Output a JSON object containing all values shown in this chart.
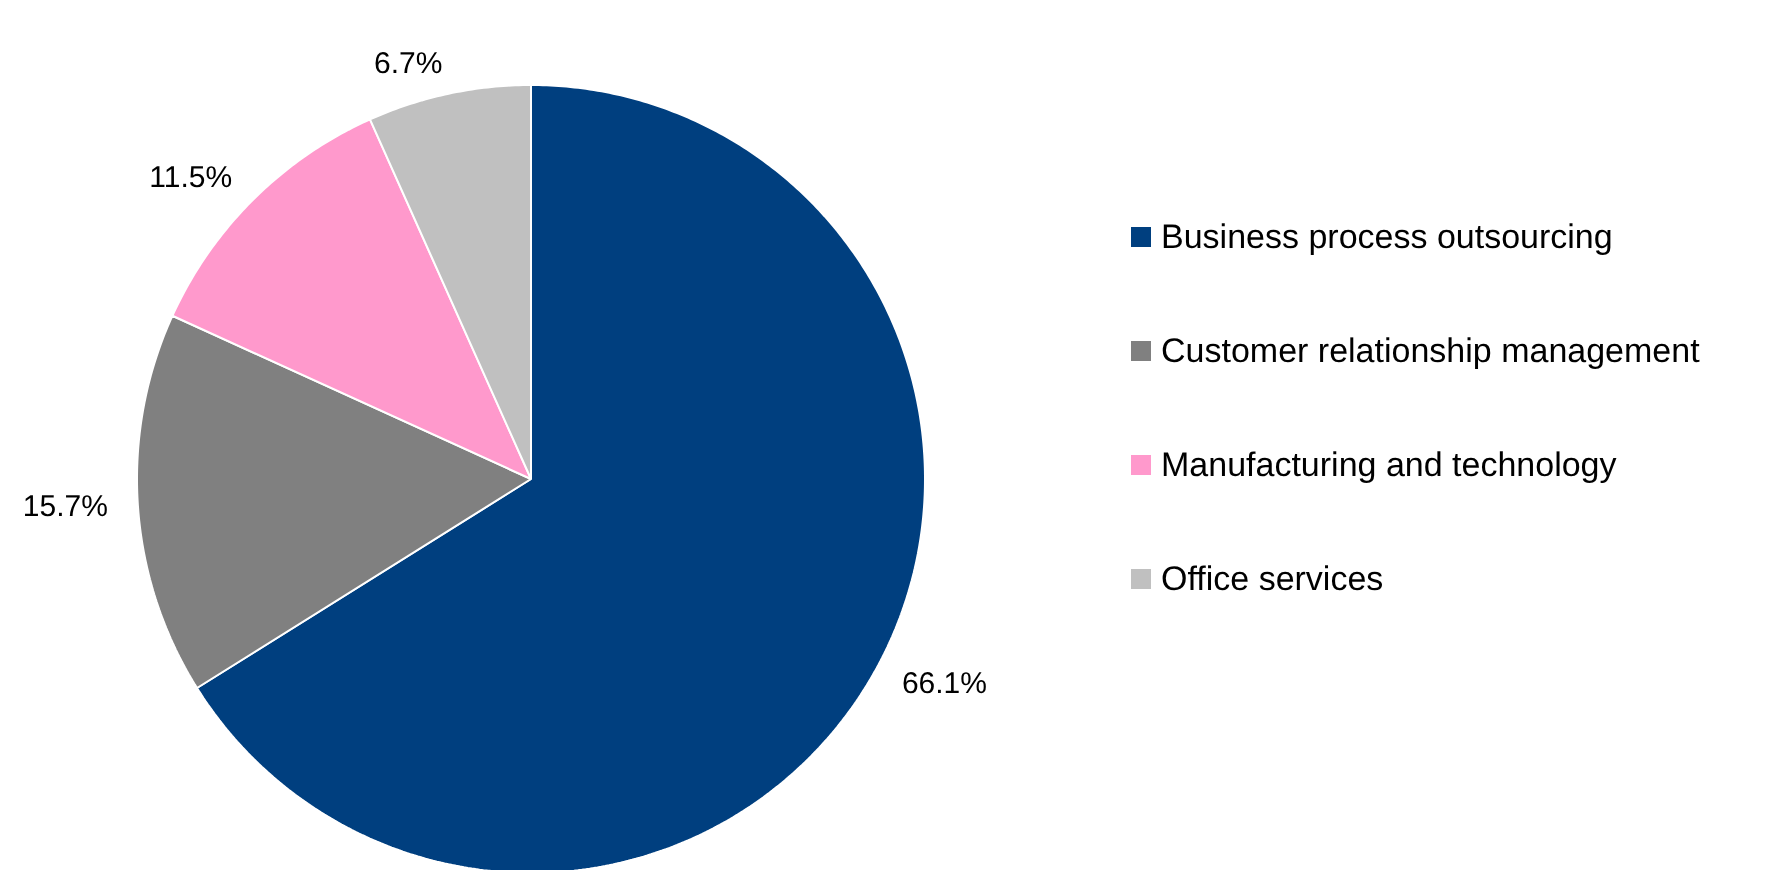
{
  "chart_data": {
    "type": "pie",
    "categories": [
      "Business process outsourcing",
      "Customer relationship management",
      "Manufacturing and technology",
      "Office services"
    ],
    "values": [
      66.1,
      15.7,
      11.5,
      6.7
    ],
    "colors": [
      "#003f7f",
      "#808080",
      "#ff99cc",
      "#c0c0c0"
    ],
    "value_labels": [
      "66.1%",
      "15.7%",
      "11.5%",
      "6.7%"
    ],
    "legend": "right"
  }
}
